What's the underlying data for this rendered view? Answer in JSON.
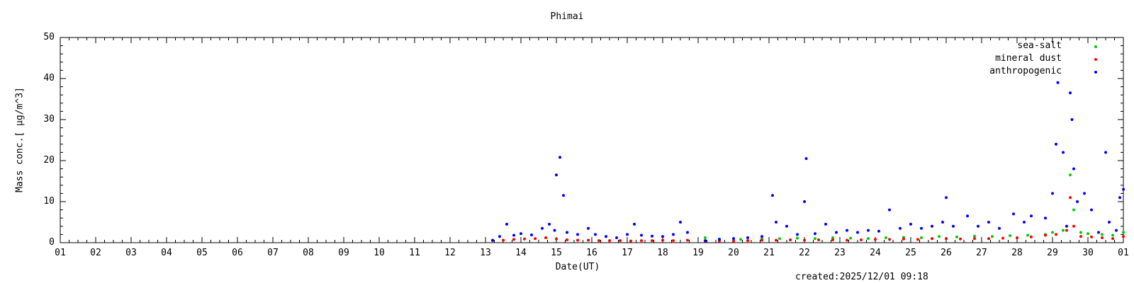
{
  "chart_data": {
    "type": "scatter",
    "title": "Phimai",
    "xlabel": "Date(UT)",
    "ylabel": "Mass conc.[ μg/m^3]",
    "created": "created:2025/12/01 09:18",
    "xticks": [
      "01",
      "02",
      "03",
      "04",
      "05",
      "06",
      "07",
      "08",
      "09",
      "10",
      "11",
      "12",
      "13",
      "14",
      "15",
      "16",
      "17",
      "18",
      "19",
      "20",
      "21",
      "22",
      "23",
      "24",
      "25",
      "26",
      "27",
      "28",
      "29",
      "30",
      "01"
    ],
    "xlim": [
      0,
      30
    ],
    "ylim": [
      0,
      50
    ],
    "yticks": [
      0,
      10,
      20,
      30,
      40,
      50
    ],
    "legend_position": "top-right",
    "series": [
      {
        "name": "sea-salt",
        "color": "#00cc00",
        "points": [
          [
            19.2,
            1.2
          ],
          [
            19.6,
            0.9
          ],
          [
            20.2,
            0.8
          ],
          [
            20.8,
            0.9
          ],
          [
            21.3,
            1.0
          ],
          [
            21.8,
            1.1
          ],
          [
            22.3,
            1.0
          ],
          [
            22.8,
            1.2
          ],
          [
            23.3,
            1.1
          ],
          [
            23.8,
            1.0
          ],
          [
            24.3,
            1.2
          ],
          [
            24.8,
            1.3
          ],
          [
            25.3,
            1.2
          ],
          [
            25.8,
            1.5
          ],
          [
            26.3,
            1.4
          ],
          [
            26.8,
            1.6
          ],
          [
            27.3,
            1.5
          ],
          [
            27.8,
            1.7
          ],
          [
            28.3,
            1.8
          ],
          [
            28.8,
            2.0
          ],
          [
            29.0,
            2.5
          ],
          [
            29.3,
            3.0
          ],
          [
            29.5,
            16.5
          ],
          [
            29.6,
            8.0
          ],
          [
            29.8,
            2.5
          ],
          [
            30.0,
            2.2
          ],
          [
            30.4,
            2.0
          ],
          [
            30.7,
            1.8
          ],
          [
            31.0,
            2.5
          ]
        ]
      },
      {
        "name": "mineral dust",
        "color": "#ff0000",
        "points": [
          [
            13.2,
            0.5
          ],
          [
            13.5,
            0.6
          ],
          [
            13.8,
            0.8
          ],
          [
            14.1,
            0.9
          ],
          [
            14.4,
            1.0
          ],
          [
            14.7,
            1.2
          ],
          [
            15.0,
            0.9
          ],
          [
            15.3,
            0.7
          ],
          [
            15.6,
            0.6
          ],
          [
            15.9,
            0.6
          ],
          [
            16.2,
            0.5
          ],
          [
            16.5,
            0.5
          ],
          [
            16.8,
            0.5
          ],
          [
            17.1,
            0.4
          ],
          [
            17.4,
            0.5
          ],
          [
            17.7,
            0.5
          ],
          [
            18.0,
            0.6
          ],
          [
            18.3,
            0.5
          ],
          [
            18.7,
            0.6
          ],
          [
            19.2,
            0.4
          ],
          [
            19.6,
            0.4
          ],
          [
            20.0,
            0.4
          ],
          [
            20.4,
            0.5
          ],
          [
            20.8,
            0.6
          ],
          [
            21.2,
            0.6
          ],
          [
            21.6,
            0.7
          ],
          [
            22.0,
            0.6
          ],
          [
            22.4,
            0.7
          ],
          [
            22.8,
            0.7
          ],
          [
            23.2,
            0.6
          ],
          [
            23.6,
            0.7
          ],
          [
            24.0,
            0.8
          ],
          [
            24.4,
            0.8
          ],
          [
            24.8,
            0.9
          ],
          [
            25.2,
            0.8
          ],
          [
            25.6,
            1.0
          ],
          [
            26.0,
            1.0
          ],
          [
            26.4,
            0.9
          ],
          [
            26.8,
            1.0
          ],
          [
            27.2,
            1.0
          ],
          [
            27.6,
            1.1
          ],
          [
            28.0,
            1.2
          ],
          [
            28.4,
            1.4
          ],
          [
            28.8,
            1.8
          ],
          [
            29.1,
            2.0
          ],
          [
            29.4,
            3.0
          ],
          [
            29.5,
            11.0
          ],
          [
            29.6,
            4.0
          ],
          [
            29.8,
            1.5
          ],
          [
            30.1,
            1.4
          ],
          [
            30.4,
            1.2
          ],
          [
            30.7,
            1.0
          ],
          [
            31.0,
            1.5
          ]
        ]
      },
      {
        "name": "anthropogenic",
        "color": "#0000ff",
        "points": [
          [
            13.2,
            0.6
          ],
          [
            13.4,
            1.5
          ],
          [
            13.6,
            4.5
          ],
          [
            13.8,
            1.8
          ],
          [
            14.0,
            2.2
          ],
          [
            14.3,
            1.9
          ],
          [
            14.6,
            3.5
          ],
          [
            14.8,
            4.5
          ],
          [
            14.95,
            3.0
          ],
          [
            15.0,
            16.5
          ],
          [
            15.1,
            20.8
          ],
          [
            15.2,
            11.5
          ],
          [
            15.3,
            2.5
          ],
          [
            15.6,
            2.0
          ],
          [
            15.9,
            3.5
          ],
          [
            16.1,
            2.0
          ],
          [
            16.4,
            1.5
          ],
          [
            16.7,
            1.2
          ],
          [
            17.0,
            2.0
          ],
          [
            17.2,
            4.5
          ],
          [
            17.4,
            1.8
          ],
          [
            17.7,
            1.6
          ],
          [
            18.0,
            1.5
          ],
          [
            18.3,
            2.0
          ],
          [
            18.5,
            5.0
          ],
          [
            18.7,
            2.5
          ],
          [
            19.2,
            0.5
          ],
          [
            19.6,
            0.8
          ],
          [
            20.0,
            1.0
          ],
          [
            20.4,
            1.2
          ],
          [
            20.8,
            1.5
          ],
          [
            21.1,
            11.5
          ],
          [
            21.2,
            5.0
          ],
          [
            21.5,
            4.0
          ],
          [
            21.8,
            2.0
          ],
          [
            22.0,
            10.0
          ],
          [
            22.05,
            20.5
          ],
          [
            22.3,
            2.2
          ],
          [
            22.6,
            4.5
          ],
          [
            22.9,
            2.5
          ],
          [
            23.2,
            3.0
          ],
          [
            23.5,
            2.5
          ],
          [
            23.8,
            3.0
          ],
          [
            24.1,
            2.8
          ],
          [
            24.4,
            8.0
          ],
          [
            24.7,
            3.5
          ],
          [
            25.0,
            4.5
          ],
          [
            25.3,
            3.5
          ],
          [
            25.6,
            4.0
          ],
          [
            25.9,
            5.0
          ],
          [
            26.0,
            11.0
          ],
          [
            26.2,
            4.0
          ],
          [
            26.6,
            6.5
          ],
          [
            26.9,
            4.0
          ],
          [
            27.2,
            5.0
          ],
          [
            27.5,
            3.5
          ],
          [
            27.9,
            7.0
          ],
          [
            28.2,
            5.0
          ],
          [
            28.4,
            6.5
          ],
          [
            28.8,
            6.0
          ],
          [
            29.0,
            12.0
          ],
          [
            29.1,
            24.0
          ],
          [
            29.15,
            39.0
          ],
          [
            29.3,
            22.0
          ],
          [
            29.4,
            4.0
          ],
          [
            29.5,
            36.5
          ],
          [
            29.55,
            30.0
          ],
          [
            29.6,
            18.0
          ],
          [
            29.7,
            10.0
          ],
          [
            29.9,
            12.0
          ],
          [
            30.1,
            8.0
          ],
          [
            30.3,
            2.5
          ],
          [
            30.5,
            22.0
          ],
          [
            30.6,
            5.0
          ],
          [
            30.8,
            3.0
          ],
          [
            30.9,
            11.0
          ],
          [
            31.0,
            13.0
          ]
        ]
      }
    ]
  }
}
